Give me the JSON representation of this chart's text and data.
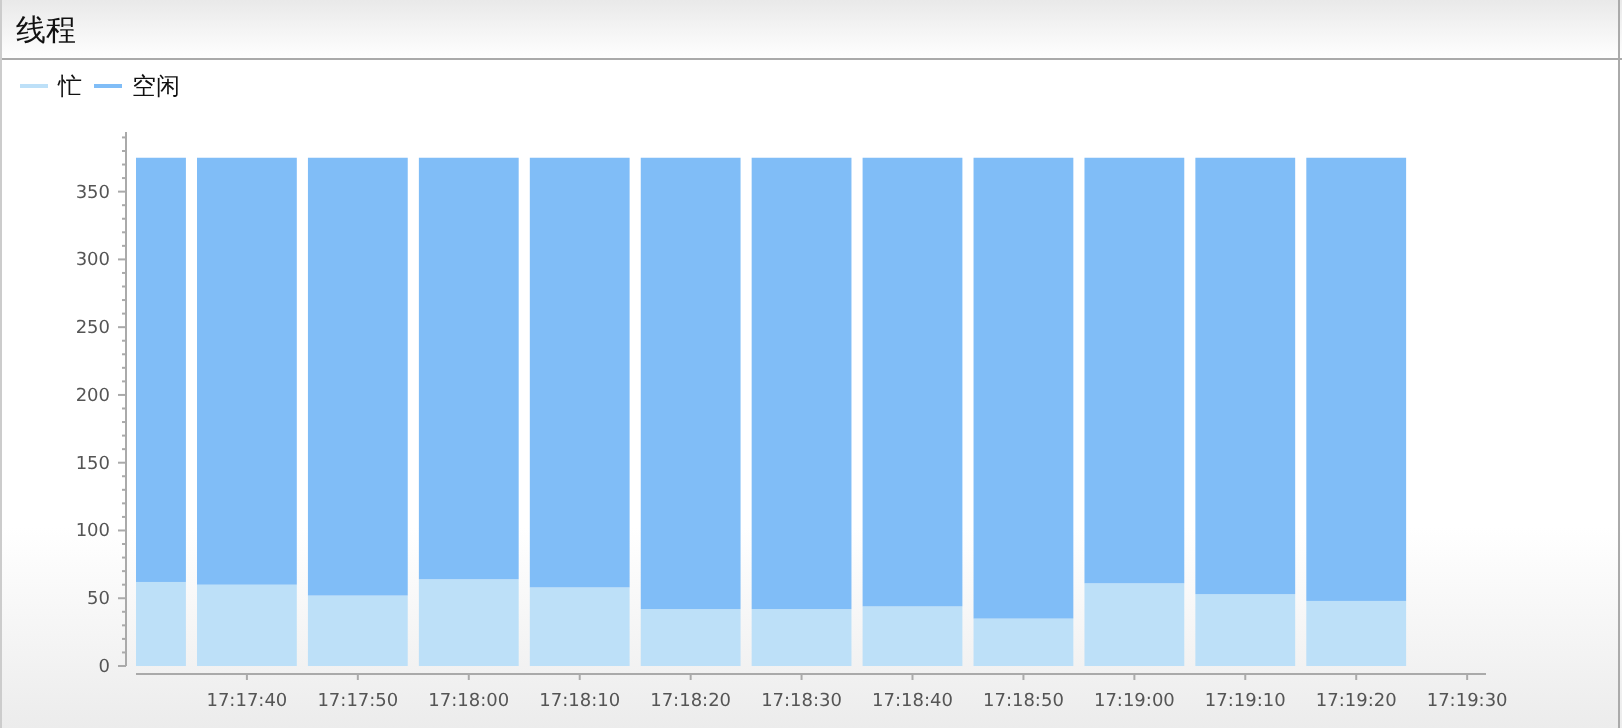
{
  "chart_data": {
    "type": "bar",
    "title": "线程",
    "stacked": true,
    "x": [
      17.291667,
      17.294444,
      17.297222,
      17.3,
      17.302778,
      17.305556,
      17.308333,
      17.311111,
      17.313889,
      17.316667,
      17.319444,
      17.322222
    ],
    "series": [
      {
        "name": "忙",
        "color": "#bde0f8",
        "values": [
          62,
          60,
          52,
          64,
          58,
          42,
          42,
          44,
          35,
          61,
          53,
          48
        ]
      },
      {
        "name": "空闲",
        "color": "#80bdf7",
        "values": [
          313,
          315,
          323,
          311,
          317,
          333,
          333,
          331,
          340,
          314,
          322,
          327
        ]
      }
    ],
    "xlim": [
      17.291667,
      17.325472
    ],
    "xticks": [
      {
        "value": 17.294444,
        "label": "17:17:40"
      },
      {
        "value": 17.297222,
        "label": "17:17:50"
      },
      {
        "value": 17.3,
        "label": "17:18:00"
      },
      {
        "value": 17.302778,
        "label": "17:18:10"
      },
      {
        "value": 17.305556,
        "label": "17:18:20"
      },
      {
        "value": 17.308333,
        "label": "17:18:30"
      },
      {
        "value": 17.311111,
        "label": "17:18:40"
      },
      {
        "value": 17.313889,
        "label": "17:18:50"
      },
      {
        "value": 17.316667,
        "label": "17:19:00"
      },
      {
        "value": 17.319444,
        "label": "17:19:10"
      },
      {
        "value": 17.322222,
        "label": "17:19:20"
      },
      {
        "value": 17.325,
        "label": "17:19:30"
      }
    ],
    "ylim": [
      0,
      394
    ],
    "yticks": [
      0,
      {
        "value": 10,
        "label": null
      },
      {
        "value": 20,
        "label": null
      },
      {
        "value": 30,
        "label": null
      },
      {
        "value": 40,
        "label": null
      },
      50,
      {
        "value": 60,
        "label": null
      },
      {
        "value": 70,
        "label": null
      },
      {
        "value": 80,
        "label": null
      },
      {
        "value": 90,
        "label": null
      },
      100,
      {
        "value": 110,
        "label": null
      },
      {
        "value": 120,
        "label": null
      },
      {
        "value": 130,
        "label": null
      },
      {
        "value": 140,
        "label": null
      },
      150,
      {
        "value": 160,
        "label": null
      },
      {
        "value": 170,
        "label": null
      },
      {
        "value": 180,
        "label": null
      },
      {
        "value": 190,
        "label": null
      },
      200,
      {
        "value": 210,
        "label": null
      },
      {
        "value": 220,
        "label": null
      },
      {
        "value": 230,
        "label": null
      },
      {
        "value": 240,
        "label": null
      },
      250,
      {
        "value": 260,
        "label": null
      },
      {
        "value": 270,
        "label": null
      },
      {
        "value": 280,
        "label": null
      },
      {
        "value": 290,
        "label": null
      },
      300,
      {
        "value": 310,
        "label": null
      },
      {
        "value": 320,
        "label": null
      },
      {
        "value": 330,
        "label": null
      },
      {
        "value": 340,
        "label": null
      },
      350,
      {
        "value": 360,
        "label": null
      },
      {
        "value": 370,
        "label": null
      },
      {
        "value": 380,
        "label": null
      },
      {
        "value": 390,
        "label": null
      }
    ],
    "legend": "top left",
    "grid": false
  }
}
